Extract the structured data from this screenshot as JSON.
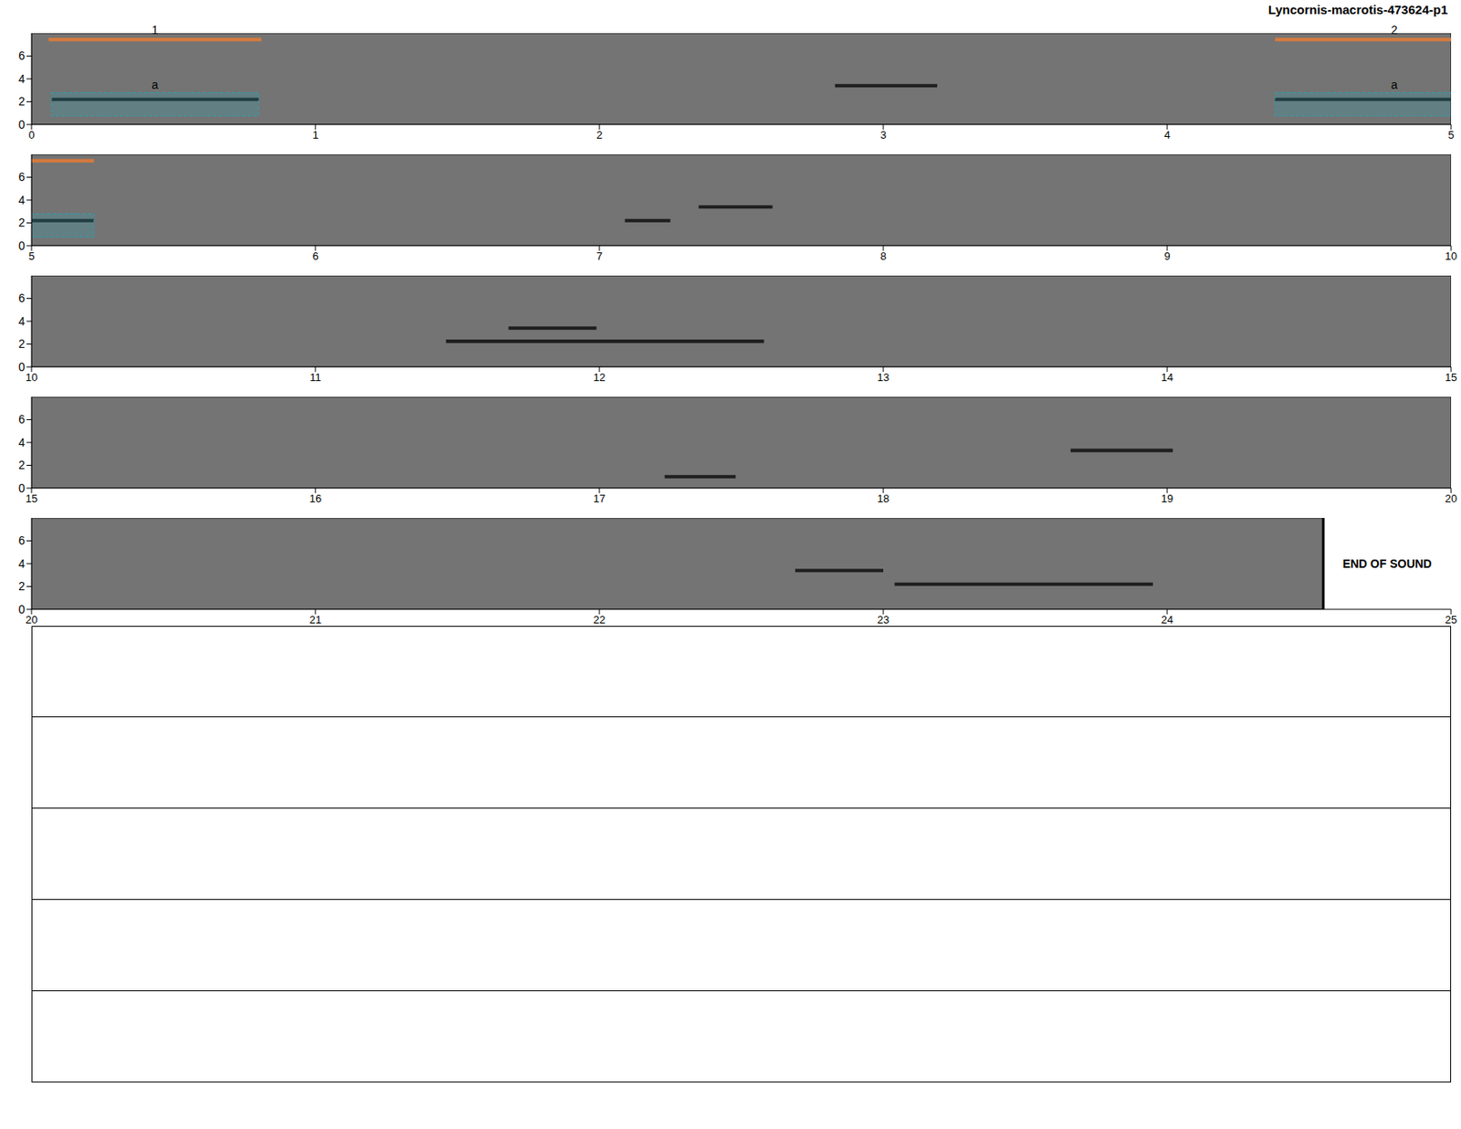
{
  "chart_data": {
    "type": "spectrogram",
    "title": "Lyncornis-macrotis-473624-p1",
    "ylim": [
      0,
      8
    ],
    "yticks": [
      0,
      2,
      4,
      6
    ],
    "rows": [
      {
        "xlim": [
          0,
          5
        ],
        "xticks": [
          0,
          1,
          2,
          3,
          4,
          5
        ]
      },
      {
        "xlim": [
          5,
          10
        ],
        "xticks": [
          5,
          6,
          7,
          8,
          9,
          10
        ]
      },
      {
        "xlim": [
          10,
          15
        ],
        "xticks": [
          10,
          11,
          12,
          13,
          14,
          15
        ]
      },
      {
        "xlim": [
          15,
          20
        ],
        "xticks": [
          15,
          16,
          17,
          18,
          19,
          20
        ]
      },
      {
        "xlim": [
          20,
          25
        ],
        "xticks": [
          20,
          21,
          22,
          23,
          24,
          25
        ]
      }
    ],
    "segments": [
      {
        "label": "1",
        "start": 0.06,
        "end": 0.81
      },
      {
        "label": "2",
        "start": 4.38,
        "end": 5.22
      }
    ],
    "boxes": [
      {
        "label": "a",
        "start": 0.07,
        "end": 0.8,
        "low": 0.75,
        "high": 2.8
      },
      {
        "label": "a",
        "start": 4.38,
        "end": 5.22,
        "low": 0.75,
        "high": 2.8
      }
    ],
    "calls": [
      {
        "start": 0.07,
        "end": 0.8,
        "freq": 2.2
      },
      {
        "start": 2.83,
        "end": 3.19,
        "freq": 3.4
      },
      {
        "start": 4.38,
        "end": 5.22,
        "freq": 2.2
      },
      {
        "start": 7.09,
        "end": 7.25,
        "freq": 2.2
      },
      {
        "start": 7.35,
        "end": 7.61,
        "freq": 3.4
      },
      {
        "start": 11.46,
        "end": 12.58,
        "freq": 2.25
      },
      {
        "start": 11.68,
        "end": 11.99,
        "freq": 3.4
      },
      {
        "start": 17.23,
        "end": 17.48,
        "freq": 1.0
      },
      {
        "start": 18.66,
        "end": 19.02,
        "freq": 3.3
      },
      {
        "start": 22.69,
        "end": 23.0,
        "freq": 3.4
      },
      {
        "start": 23.04,
        "end": 23.95,
        "freq": 2.2
      }
    ],
    "end_of_sound": {
      "label": "END OF SOUND",
      "x": 24.55
    },
    "empty_rows": 5
  }
}
